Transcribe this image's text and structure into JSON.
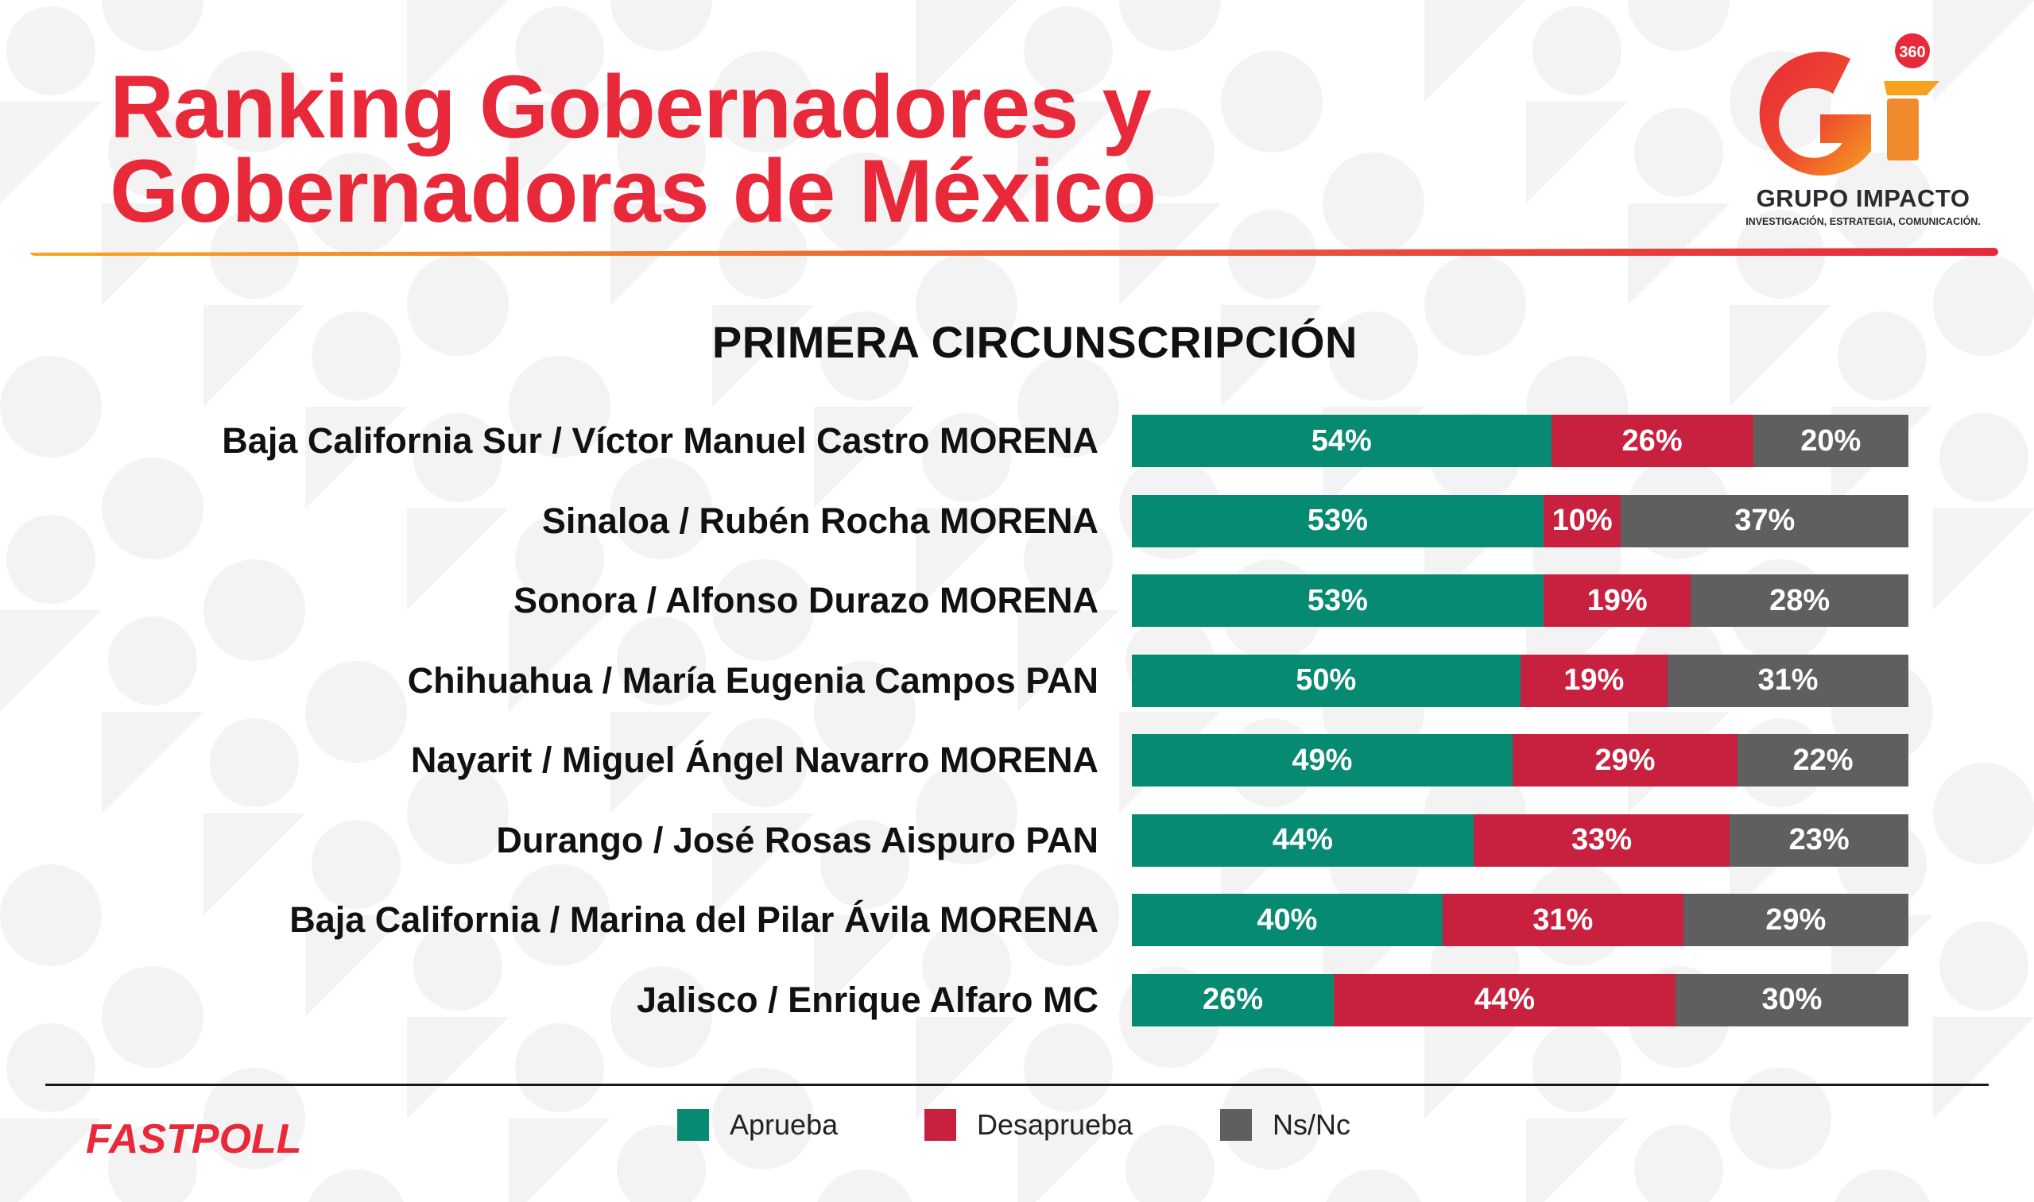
{
  "page": {
    "title_line1": "Ranking Gobernadores y",
    "title_line2": "Gobernadoras de México",
    "subtitle": "PRIMERA CIRCUNSCRIPCIÓN",
    "brand": "FASTPOLL"
  },
  "logo": {
    "letters": "Gi",
    "badge": "360",
    "name": "GRUPO IMPACTO",
    "tagline": "INVESTIGACIÓN, ESTRATEGIA, COMUNICACIÓN."
  },
  "colors": {
    "aprueba": "#068a72",
    "desaprueba": "#c8203f",
    "nsnc": "#5f5f5f",
    "accent": "#e8293a"
  },
  "chart_data": {
    "type": "bar",
    "orientation": "horizontal",
    "stacked": true,
    "title": "PRIMERA CIRCUNSCRIPCIÓN",
    "categories": [
      "Baja California Sur / Víctor Manuel Castro MORENA",
      "Sinaloa / Rubén Rocha MORENA",
      "Sonora / Alfonso Durazo MORENA",
      "Chihuahua / María Eugenia Campos PAN",
      "Nayarit / Miguel Ángel Navarro MORENA",
      "Durango / José Rosas Aispuro PAN",
      "Baja California / Marina del Pilar Ávila MORENA",
      "Jalisco / Enrique Alfaro MC"
    ],
    "series": [
      {
        "name": "Aprueba",
        "values": [
          54,
          53,
          53,
          50,
          49,
          44,
          40,
          26
        ]
      },
      {
        "name": "Desaprueba",
        "values": [
          26,
          10,
          19,
          19,
          29,
          33,
          31,
          44
        ]
      },
      {
        "name": "Ns/Nc",
        "values": [
          20,
          37,
          28,
          31,
          22,
          23,
          29,
          30
        ]
      }
    ],
    "xlim": [
      0,
      100
    ],
    "legend_position": "bottom",
    "grid": false
  }
}
